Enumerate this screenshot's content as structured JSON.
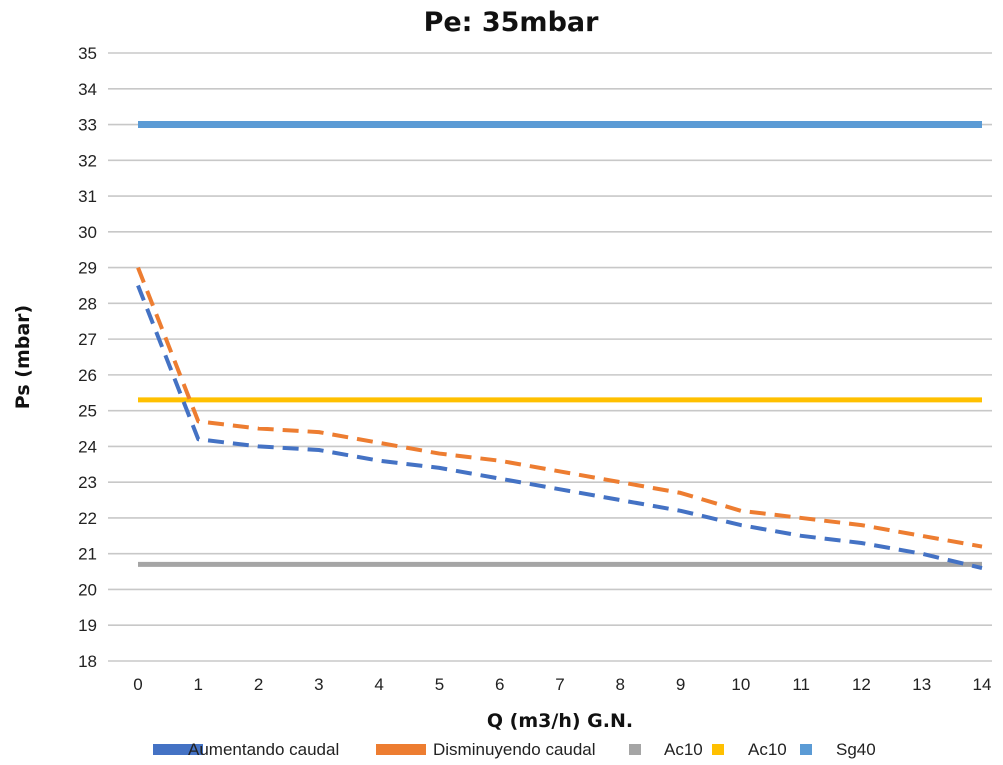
{
  "chart_data": {
    "type": "line",
    "title": "Pe: 35mbar",
    "xlabel": "Q (m3/h) G.N.",
    "ylabel": "Ps (mbar)",
    "x": [
      0,
      1,
      2,
      3,
      4,
      5,
      6,
      7,
      8,
      9,
      10,
      11,
      12,
      13,
      14
    ],
    "xlim": [
      0,
      14
    ],
    "ylim": [
      18,
      35
    ],
    "yticks": [
      18,
      19,
      20,
      21,
      22,
      23,
      24,
      25,
      26,
      27,
      28,
      29,
      30,
      31,
      32,
      33,
      34,
      35
    ],
    "grid": true,
    "legend_position": "bottom",
    "series": [
      {
        "name": "Aumentando caudal",
        "color": "#4472C4",
        "dashed": true,
        "values": [
          28.5,
          24.2,
          24.0,
          23.9,
          23.6,
          23.4,
          23.1,
          22.8,
          22.5,
          22.2,
          21.8,
          21.5,
          21.3,
          21.0,
          20.6
        ]
      },
      {
        "name": "Disminuyendo caudal",
        "color": "#ED7D31",
        "dashed": true,
        "values": [
          29.0,
          24.7,
          24.5,
          24.4,
          24.1,
          23.8,
          23.6,
          23.3,
          23.0,
          22.7,
          22.2,
          22.0,
          21.8,
          21.5,
          21.2
        ]
      },
      {
        "name": "Ac10",
        "color": "#A5A5A5",
        "dashed": false,
        "values": [
          20.7,
          20.7,
          20.7,
          20.7,
          20.7,
          20.7,
          20.7,
          20.7,
          20.7,
          20.7,
          20.7,
          20.7,
          20.7,
          20.7,
          20.7
        ]
      },
      {
        "name": "Ac10",
        "color": "#FFC000",
        "dashed": false,
        "values": [
          25.3,
          25.3,
          25.3,
          25.3,
          25.3,
          25.3,
          25.3,
          25.3,
          25.3,
          25.3,
          25.3,
          25.3,
          25.3,
          25.3,
          25.3
        ]
      },
      {
        "name": "Sg40",
        "color": "#5B9BD5",
        "dashed": false,
        "values": [
          33.0,
          33.0,
          33.0,
          33.0,
          33.0,
          33.0,
          33.0,
          33.0,
          33.0,
          33.0,
          33.0,
          33.0,
          33.0,
          33.0,
          33.0
        ]
      }
    ]
  }
}
